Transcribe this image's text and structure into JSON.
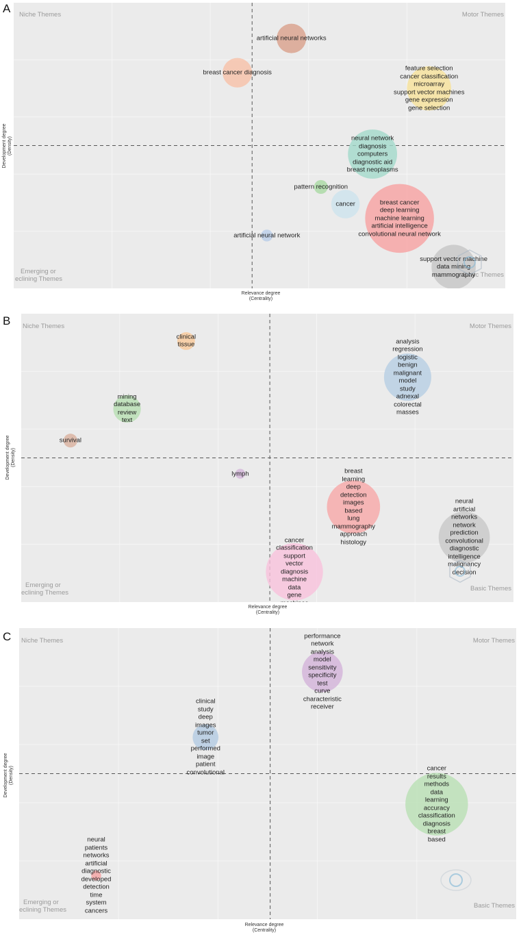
{
  "chart_data": [
    {
      "type": "scatter",
      "panel_label": "A",
      "xlabel": "Relevance degree",
      "xlabel_sub": "(Centrality)",
      "ylabel": "Development degree",
      "ylabel_sub": "(Density)",
      "quadrants": {
        "top_left": "Niche Themes",
        "top_right": "Motor Themes",
        "bottom_left_1": "Emerging or",
        "bottom_left_2": "eclining Themes",
        "bottom_right": "Basic Themes"
      },
      "xlim": [
        0,
        100
      ],
      "ylim": [
        0,
        100
      ],
      "divider_x": 48.5,
      "divider_y": 50,
      "clusters": [
        {
          "x": 56.5,
          "y": 87.5,
          "size": 3,
          "color": "#d9a08b",
          "label": [
            "artificial neural networks"
          ]
        },
        {
          "x": 45.5,
          "y": 75.5,
          "size": 3,
          "color": "#f7c0a8",
          "label": [
            "breast cancer diagnosis"
          ]
        },
        {
          "x": 84.5,
          "y": 70,
          "size": 4.5,
          "color": "#f7e29a",
          "label": [
            "feature selection",
            "cancer classification",
            "microarray",
            "support vector machines",
            "gene expression",
            "gene selection"
          ]
        },
        {
          "x": 73,
          "y": 47,
          "size": 5,
          "color": "#a3d9cb",
          "label": [
            "neural network",
            "diagnosis",
            "computers",
            "diagnostic aid",
            "breast neoplasms"
          ]
        },
        {
          "x": 62.5,
          "y": 35.5,
          "size": 1.4,
          "color": "#a9d9a2",
          "label": [
            "pattern recognition"
          ]
        },
        {
          "x": 67.5,
          "y": 29.5,
          "size": 2.9,
          "color": "#cde4ee",
          "label": [
            "cancer"
          ]
        },
        {
          "x": 78.5,
          "y": 24.5,
          "size": 7,
          "color": "#f7a1a1",
          "label": [
            "breast cancer",
            "deep learning",
            "machine learning",
            "artificial intelligence",
            "convolutional neural network"
          ]
        },
        {
          "x": 51.5,
          "y": 18.5,
          "size": 1.2,
          "color": "#b9cde8",
          "label": [
            "artificial neural network"
          ]
        },
        {
          "x": 89.5,
          "y": 7.5,
          "size": 4.5,
          "color": "#c6c6c6",
          "label": [
            "support vector machine",
            "data mining",
            "mammography"
          ]
        }
      ]
    },
    {
      "type": "scatter",
      "panel_label": "B",
      "xlabel": "Relevance degree",
      "xlabel_sub": "(Centrality)",
      "ylabel": "Development degree",
      "ylabel_sub": "(Density)",
      "quadrants": {
        "top_left": "Niche Themes",
        "top_right": "Motor Themes",
        "bottom_left_1": "Emerging or",
        "bottom_left_2": "eclining Themes",
        "bottom_right": "Basic Themes"
      },
      "xlim": [
        0,
        100
      ],
      "ylim": [
        0,
        100
      ],
      "divider_x": 50.5,
      "divider_y": 50,
      "clusters": [
        {
          "x": 33.5,
          "y": 90.5,
          "size": 1.8,
          "color": "#f9c99a",
          "label": [
            "clinical",
            "tissue"
          ]
        },
        {
          "x": 78.5,
          "y": 78,
          "size": 4.8,
          "color": "#b6cee4",
          "label": [
            "analysis",
            "regression",
            "logistic",
            "benign",
            "malignant",
            "model",
            "study",
            "adnexal",
            "colorectal",
            "masses"
          ]
        },
        {
          "x": 21.5,
          "y": 67,
          "size": 2.8,
          "color": "#b7deb1",
          "label": [
            "mining",
            "database",
            "review",
            "text"
          ]
        },
        {
          "x": 10,
          "y": 56,
          "size": 1.4,
          "color": "#d9b09e",
          "label": [
            "survival"
          ]
        },
        {
          "x": 44.5,
          "y": 44.5,
          "size": 1,
          "color": "#d5b6db",
          "label": [
            "lymph"
          ]
        },
        {
          "x": 67.5,
          "y": 33,
          "size": 5.4,
          "color": "#f7a8a8",
          "label": [
            "breast",
            "learning",
            "deep",
            "detection",
            "images",
            "based",
            "lung",
            "mammography",
            "approach",
            "histology"
          ]
        },
        {
          "x": 90,
          "y": 22.5,
          "size": 5.2,
          "color": "#c8c8c8",
          "label": [
            "neural",
            "artificial",
            "networks",
            "network",
            "prediction",
            "convolutional",
            "diagnostic",
            "intelligence",
            "malignancy",
            "decision"
          ]
        },
        {
          "x": 55.5,
          "y": 10.5,
          "size": 5.8,
          "color": "#f9c2dc",
          "label": [
            "cancer",
            "classification",
            "support",
            "vector",
            "diagnosis",
            "machine",
            "data",
            "gene",
            "machines"
          ]
        }
      ]
    },
    {
      "type": "scatter",
      "panel_label": "C",
      "xlabel": "Relevance degree",
      "xlabel_sub": "(Centrality)",
      "ylabel": "Development degree",
      "ylabel_sub": "(Density)",
      "quadrants": {
        "top_left": "Niche Themes",
        "top_right": "Motor Themes",
        "bottom_left_1": "Emerging or",
        "bottom_left_2": "eclining Themes",
        "bottom_right": "Basic Themes"
      },
      "xlim": [
        0,
        100
      ],
      "ylim": [
        0,
        100
      ],
      "divider_x": 50.5,
      "divider_y": 50,
      "clusters": [
        {
          "x": 61,
          "y": 85,
          "size": 4.1,
          "color": "#d3b3d9",
          "label": [
            "performance",
            "network",
            "analysis",
            "model",
            "sensitivity",
            "specificity",
            "test",
            "curve",
            "characteristic",
            "receiver"
          ]
        },
        {
          "x": 37.5,
          "y": 62.5,
          "size": 2.6,
          "color": "#b3cae2",
          "label": [
            "clinical",
            "study",
            "deep",
            "images",
            "tumor",
            "set",
            "performed",
            "image",
            "patient",
            "convolutional"
          ]
        },
        {
          "x": 84,
          "y": 39.5,
          "size": 6.3,
          "color": "#b9e0b4",
          "label": [
            "cancer",
            "results",
            "methods",
            "data",
            "learning",
            "accuracy",
            "classification",
            "diagnosis",
            "breast",
            "based"
          ]
        },
        {
          "x": 15.5,
          "y": 15,
          "size": 1,
          "color": "#f5a1a1",
          "label": [
            "neural",
            "patients",
            "networks",
            "artificial",
            "diagnostic",
            "developed",
            "detection",
            "time",
            "system",
            "cancers"
          ]
        }
      ]
    }
  ]
}
